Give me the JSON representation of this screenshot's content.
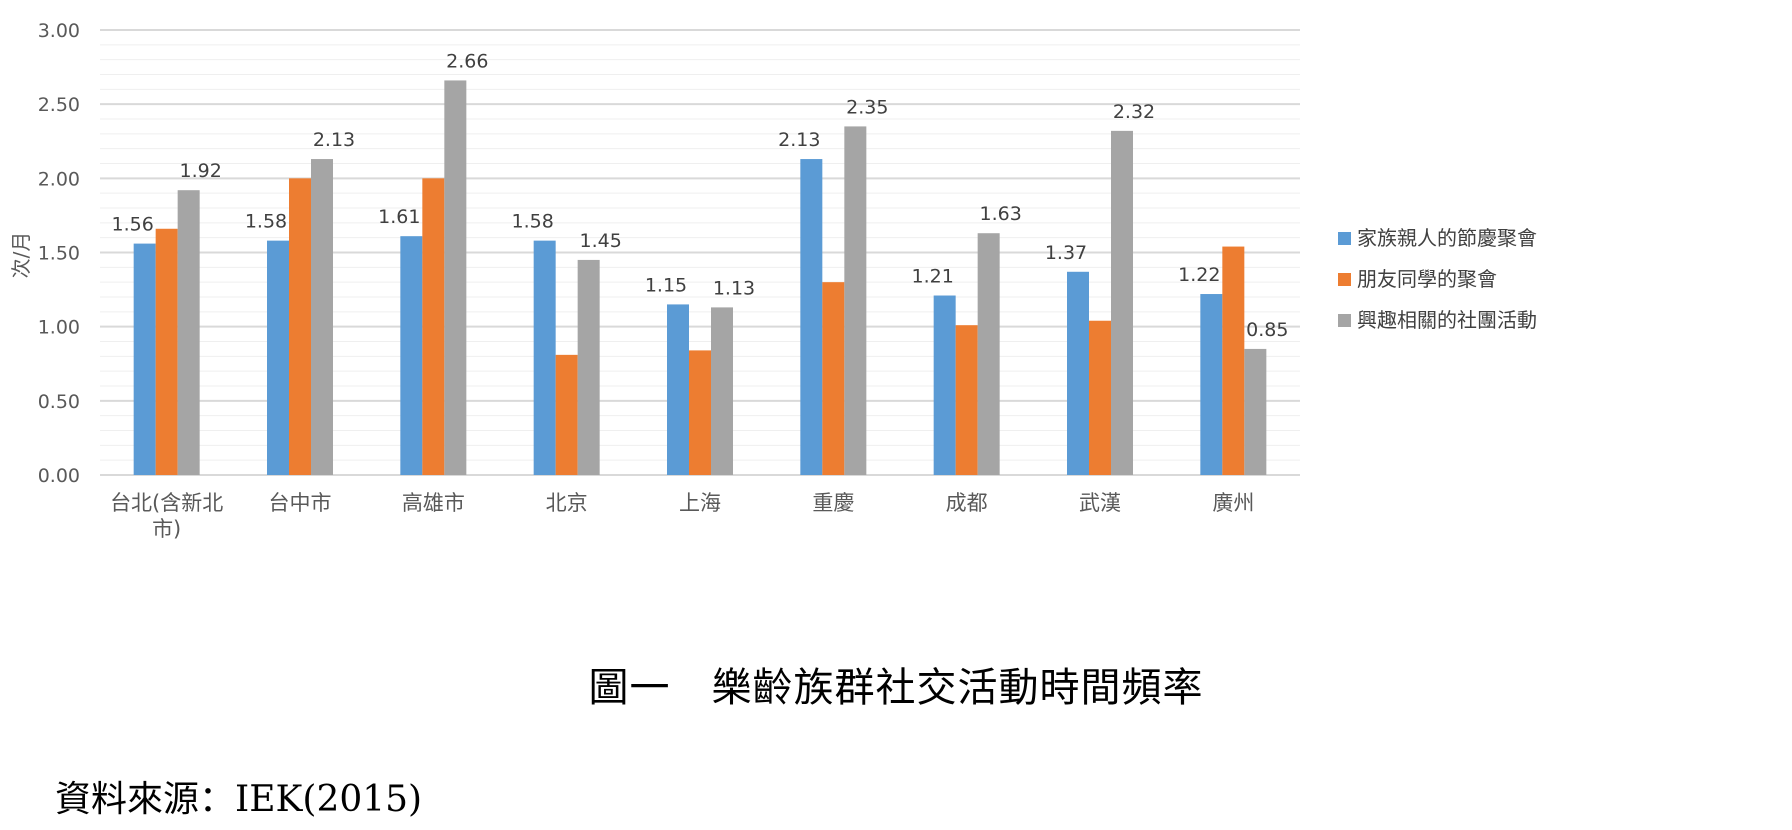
{
  "chart_data": {
    "type": "bar",
    "ylabel": "次/月",
    "ylim": [
      0,
      3
    ],
    "yticks": [
      "0.00",
      "0.50",
      "1.00",
      "1.50",
      "2.00",
      "2.50",
      "3.00"
    ],
    "grid": true,
    "legend_position": "right",
    "categories": [
      [
        "台北(含新北",
        "市)"
      ],
      [
        "台中市"
      ],
      [
        "高雄市"
      ],
      [
        "北京"
      ],
      [
        "上海"
      ],
      [
        "重慶"
      ],
      [
        "成都"
      ],
      [
        "武漢"
      ],
      [
        "廣州"
      ]
    ],
    "series": [
      {
        "name": "家族親人的節慶聚會",
        "color": "#5B9BD5",
        "values": [
          1.56,
          1.58,
          1.61,
          1.58,
          1.15,
          2.13,
          1.21,
          1.37,
          1.22
        ],
        "labels": [
          "1.56",
          "1.58",
          "1.61",
          "1.58",
          "1.15",
          "2.13",
          "1.21",
          "1.37",
          "1.22"
        ]
      },
      {
        "name": "朋友同學的聚會",
        "color": "#ED7D31",
        "values": [
          1.66,
          2.0,
          2.0,
          0.81,
          0.84,
          1.3,
          1.01,
          1.04,
          1.54
        ],
        "labels": [
          "",
          "",
          "",
          "",
          "",
          "",
          "",
          "",
          ""
        ]
      },
      {
        "name": "興趣相關的社團活動",
        "color": "#A5A5A5",
        "values": [
          1.92,
          2.13,
          2.66,
          1.45,
          1.13,
          2.35,
          1.63,
          2.32,
          0.85
        ],
        "labels": [
          "1.92",
          "2.13",
          "2.66",
          "1.45",
          "1.13",
          "2.35",
          "1.63",
          "2.32",
          "0.85"
        ]
      }
    ]
  },
  "caption": "圖一　樂齡族群社交活動時間頻率",
  "source": "資料來源：IEK(2015)"
}
